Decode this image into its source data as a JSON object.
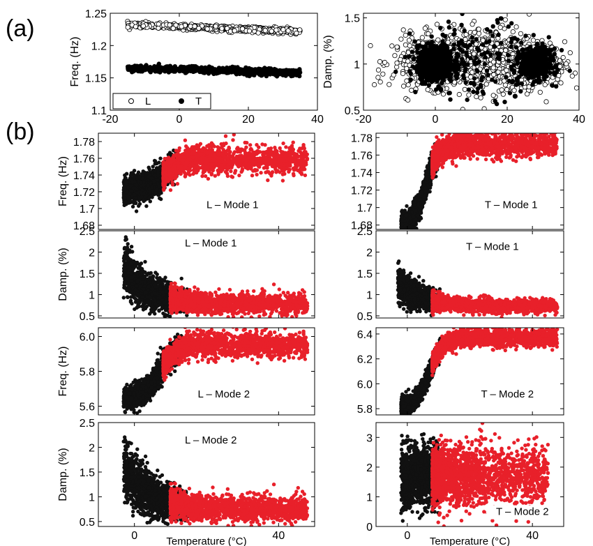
{
  "figure": {
    "panel_labels": [
      "(a)",
      "(b)"
    ],
    "colors": {
      "L": "#ffffff",
      "T": "#000000",
      "black_cluster": "#111111",
      "red_cluster": "#e8202a",
      "marker_edge": "#000000"
    }
  },
  "chart_data": [
    {
      "id": "a-freq",
      "type": "scatter",
      "panel": "(a)",
      "ylabel": "Freq. (Hz)",
      "xlabel": "",
      "xlim": [
        -20,
        40
      ],
      "ylim": [
        1.1,
        1.25
      ],
      "xticks": [
        -20,
        0,
        20,
        40
      ],
      "xticklabels": [
        "-20",
        "0",
        "20",
        "40"
      ],
      "yticks": [
        1.1,
        1.15,
        1.2,
        1.25
      ],
      "yticklabels": [
        "1.1",
        "1.15",
        "1.2",
        "1.25"
      ],
      "legend": {
        "position": "lower-left",
        "entries": [
          {
            "label": "L",
            "marker": "open-circle"
          },
          {
            "label": "T",
            "marker": "filled-circle"
          }
        ]
      },
      "series": [
        {
          "name": "L",
          "marker": "open-circle",
          "x_range": [
            -15,
            35
          ],
          "y_start": 1.232,
          "y_end": 1.222,
          "spread": 0.004,
          "n": 700
        },
        {
          "name": "T",
          "marker": "filled-circle",
          "x_range": [
            -15,
            35
          ],
          "y_start": 1.165,
          "y_end": 1.158,
          "spread": 0.005,
          "n": 700
        }
      ]
    },
    {
      "id": "a-damp",
      "type": "scatter",
      "panel": "(a)",
      "ylabel": "Damp. (%)",
      "xlabel": "",
      "xlim": [
        -20,
        40
      ],
      "ylim": [
        0.5,
        1.55
      ],
      "xticks": [
        -20,
        0,
        20,
        40
      ],
      "xticklabels": [
        "-20",
        "0",
        "20",
        "40"
      ],
      "yticks": [
        0.5,
        1,
        1.5
      ],
      "yticklabels": [
        "0.5",
        "1",
        "1.5"
      ],
      "clusters": [
        {
          "marker": "open-circle",
          "cx": 0,
          "cy": 1.02,
          "sx": 6,
          "sy": 0.14,
          "n": 500
        },
        {
          "marker": "open-circle",
          "cx": 28,
          "cy": 1.0,
          "sx": 4,
          "sy": 0.12,
          "n": 400
        },
        {
          "marker": "open-circle",
          "cx": 15,
          "cy": 1.05,
          "sx": 7,
          "sy": 0.18,
          "n": 400
        },
        {
          "marker": "filled-circle",
          "cx": 0,
          "cy": 1.0,
          "sx": 2.5,
          "sy": 0.09,
          "n": 700
        },
        {
          "marker": "filled-circle",
          "cx": 28,
          "cy": 1.0,
          "sx": 2.2,
          "sy": 0.08,
          "n": 450
        },
        {
          "marker": "filled-circle",
          "cx": 12,
          "cy": 1.05,
          "sx": 9,
          "sy": 0.2,
          "n": 180
        }
      ]
    },
    {
      "id": "b-L-freq1",
      "type": "scatter",
      "panel": "(b)",
      "ylabel": "Freq. (Hz)",
      "annotation": "L – Mode 1",
      "xlim": [
        -10,
        50
      ],
      "ylim": [
        1.675,
        1.79
      ],
      "xticks": [
        0,
        40
      ],
      "xticklabels": [
        "",
        ""
      ],
      "yticks": [
        1.68,
        1.7,
        1.72,
        1.74,
        1.76,
        1.78
      ],
      "yticklabels": [
        "1.68",
        "1.7",
        "1.72",
        "1.74",
        "1.76",
        "1.78"
      ],
      "profile": {
        "kind": "rise",
        "base": 1.722,
        "top": 1.758,
        "t0": 8,
        "width": 10,
        "spread": 0.008
      },
      "clusters": [
        {
          "color": "black",
          "x_range": [
            -3,
            12
          ],
          "n": 1300
        },
        {
          "color": "red",
          "x_range": [
            8,
            48
          ],
          "n": 1600
        }
      ]
    },
    {
      "id": "b-T-freq1",
      "type": "scatter",
      "panel": "(b)",
      "ylabel": "",
      "annotation": "T – Mode 1",
      "xlim": [
        -10,
        50
      ],
      "ylim": [
        1.675,
        1.785
      ],
      "xticks": [
        0,
        40
      ],
      "xticklabels": [
        "",
        ""
      ],
      "yticks": [
        1.68,
        1.7,
        1.72,
        1.74,
        1.76,
        1.78
      ],
      "yticklabels": [
        "1.68",
        "1.7",
        "1.72",
        "1.74",
        "1.76",
        "1.78"
      ],
      "profile": {
        "kind": "rise",
        "base": 1.678,
        "top": 1.772,
        "t0": 6,
        "width": 8,
        "spread": 0.007
      },
      "clusters": [
        {
          "color": "black",
          "x_range": [
            -2,
            10
          ],
          "n": 1300
        },
        {
          "color": "red",
          "x_range": [
            8,
            48
          ],
          "n": 1600
        }
      ]
    },
    {
      "id": "b-L-damp1",
      "type": "scatter",
      "panel": "(b)",
      "ylabel": "Damp. (%)",
      "annotation": "L – Mode 1",
      "xlim": [
        -10,
        50
      ],
      "ylim": [
        0.45,
        2.5
      ],
      "xticks": [
        0,
        40
      ],
      "xticklabels": [
        "",
        ""
      ],
      "yticks": [
        0.5,
        1,
        1.5,
        2,
        2.5
      ],
      "yticklabels": [
        "0.5",
        "1",
        "1.5",
        "2",
        "2.5"
      ],
      "profile": {
        "kind": "decay",
        "base": 0.78,
        "peak": 1.5,
        "t0": -2,
        "tau": 7,
        "spread": 0.12
      },
      "clusters": [
        {
          "color": "black",
          "x_range": [
            -3,
            15
          ],
          "n": 1300
        },
        {
          "color": "red",
          "x_range": [
            10,
            48
          ],
          "n": 1600
        }
      ]
    },
    {
      "id": "b-T-damp1",
      "type": "scatter",
      "panel": "(b)",
      "ylabel": "",
      "annotation": "T – Mode 1",
      "xlim": [
        -10,
        50
      ],
      "ylim": [
        0.45,
        2.5
      ],
      "xticks": [
        0,
        40
      ],
      "xticklabels": [
        "",
        ""
      ],
      "yticks": [
        0.5,
        1,
        1.5,
        2,
        2.5
      ],
      "yticklabels": [
        "0.5",
        "1",
        "1.5",
        "2",
        "2.5"
      ],
      "profile": {
        "kind": "decay",
        "base": 0.72,
        "peak": 1.2,
        "t0": -2,
        "tau": 8,
        "spread": 0.08
      },
      "clusters": [
        {
          "color": "black",
          "x_range": [
            -3,
            11
          ],
          "n": 1100
        },
        {
          "color": "red",
          "x_range": [
            8,
            48
          ],
          "n": 1600
        }
      ]
    },
    {
      "id": "b-L-freq2",
      "type": "scatter",
      "panel": "(b)",
      "ylabel": "Freq. (Hz)",
      "annotation": "L – Mode 2",
      "xlim": [
        -10,
        50
      ],
      "ylim": [
        5.55,
        6.05
      ],
      "xticks": [
        0,
        40
      ],
      "xticklabels": [
        "",
        ""
      ],
      "yticks": [
        5.6,
        5.8,
        6.0
      ],
      "yticklabels": [
        "5.6",
        "5.8",
        "6.0"
      ],
      "profile": {
        "kind": "rise",
        "base": 5.64,
        "top": 5.95,
        "t0": 7,
        "width": 9,
        "spread": 0.035
      },
      "clusters": [
        {
          "color": "black",
          "x_range": [
            -3,
            13
          ],
          "n": 1300
        },
        {
          "color": "red",
          "x_range": [
            8,
            48
          ],
          "n": 1600
        }
      ]
    },
    {
      "id": "b-T-freq2",
      "type": "scatter",
      "panel": "(b)",
      "ylabel": "",
      "annotation": "T – Mode 2",
      "xlim": [
        -10,
        50
      ],
      "ylim": [
        5.75,
        6.45
      ],
      "xticks": [
        0,
        40
      ],
      "xticklabels": [
        "",
        ""
      ],
      "yticks": [
        5.8,
        6.0,
        6.2,
        6.4
      ],
      "yticklabels": [
        "5.8",
        "6.0",
        "6.2",
        "6.4"
      ],
      "profile": {
        "kind": "rise",
        "base": 5.8,
        "top": 6.37,
        "t0": 7,
        "width": 9,
        "spread": 0.035
      },
      "clusters": [
        {
          "color": "black",
          "x_range": [
            -2,
            11
          ],
          "n": 1300
        },
        {
          "color": "red",
          "x_range": [
            8,
            48
          ],
          "n": 1600
        }
      ]
    },
    {
      "id": "b-L-damp2",
      "type": "scatter",
      "panel": "(b)",
      "ylabel": "Damp. (%)",
      "annotation": "L – Mode 2",
      "xlabel": "Temperature (°C)",
      "xlim": [
        -10,
        50
      ],
      "ylim": [
        0.4,
        2.5
      ],
      "xticks": [
        0,
        40
      ],
      "xticklabels": [
        "0",
        "40"
      ],
      "yticks": [
        0.5,
        1,
        1.5,
        2,
        2.5
      ],
      "yticklabels": [
        "0.5",
        "1",
        "1.5",
        "2",
        "2.5"
      ],
      "profile": {
        "kind": "decay",
        "base": 0.75,
        "peak": 1.5,
        "t0": -2,
        "tau": 7,
        "spread": 0.13
      },
      "clusters": [
        {
          "color": "black",
          "x_range": [
            -3,
            15
          ],
          "n": 1300
        },
        {
          "color": "red",
          "x_range": [
            10,
            48
          ],
          "n": 1600
        }
      ]
    },
    {
      "id": "b-T-damp2",
      "type": "scatter",
      "panel": "(b)",
      "ylabel": "",
      "annotation": "T – Mode 2",
      "xlabel": "Temperature (°C)",
      "xlim": [
        -10,
        50
      ],
      "ylim": [
        0,
        3.5
      ],
      "xticks": [
        0,
        40
      ],
      "xticklabels": [
        "0",
        "40"
      ],
      "yticks": [
        0,
        1,
        2,
        3
      ],
      "yticklabels": [
        "0",
        "1",
        "2",
        "3"
      ],
      "profile": {
        "kind": "flat",
        "level": 1.7,
        "spread": 0.5
      },
      "clusters": [
        {
          "color": "black",
          "x_range": [
            -2,
            10
          ],
          "n": 1200
        },
        {
          "color": "red",
          "x_range": [
            8,
            45
          ],
          "n": 1800
        }
      ]
    }
  ]
}
